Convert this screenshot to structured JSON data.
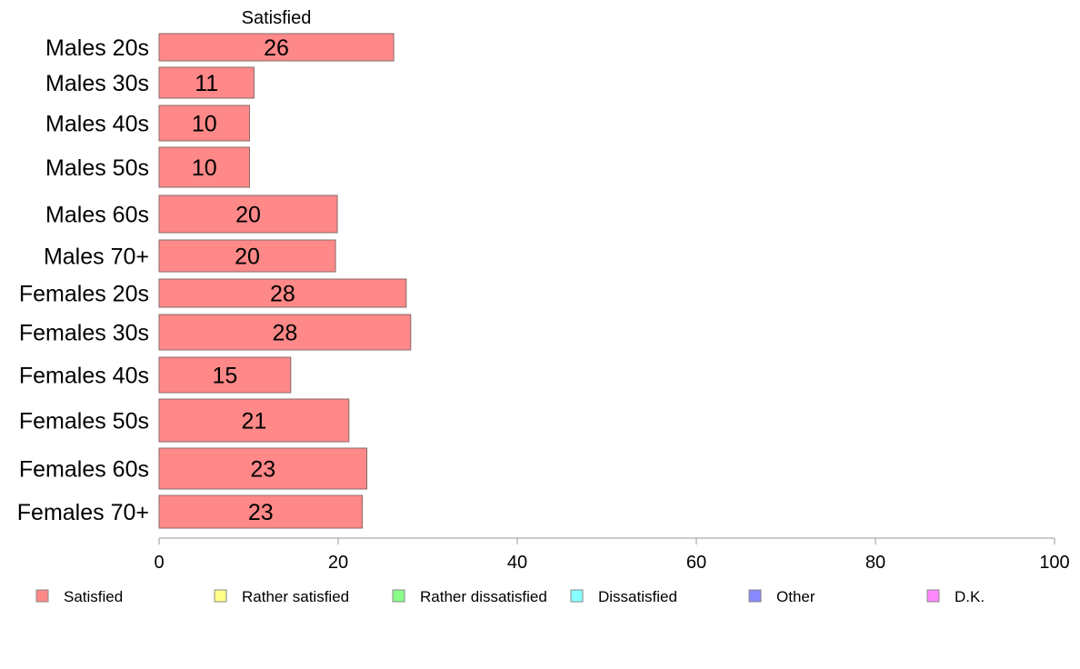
{
  "chart_data": {
    "type": "bar",
    "orientation": "horizontal",
    "series_title": "Satisfied",
    "categories": [
      "Males 20s",
      "Males 30s",
      "Males 40s",
      "Males 50s",
      "Males 60s",
      "Males 70+",
      "Females 20s",
      "Females 30s",
      "Females 40s",
      "Females 50s",
      "Females 60s",
      "Females 70+"
    ],
    "series": [
      {
        "name": "Satisfied",
        "color": "#ff8888",
        "values": [
          26.2,
          10.6,
          10.1,
          10.1,
          19.9,
          19.7,
          27.6,
          28.1,
          14.7,
          21.2,
          23.2,
          22.7
        ]
      }
    ],
    "value_labels": [
      "26",
      "11",
      "10",
      "10",
      "20",
      "20",
      "28",
      "28",
      "15",
      "21",
      "23",
      "23"
    ],
    "xlim": [
      0,
      100
    ],
    "xticks": [
      0,
      20,
      40,
      60,
      80,
      100
    ],
    "xtick_labels": [
      "0",
      "20",
      "40",
      "60",
      "80",
      "100"
    ],
    "grid": false,
    "legend": {
      "placement": "bottom",
      "items": [
        {
          "label": "Satisfied",
          "color": "#ff8888"
        },
        {
          "label": "Rather satisfied",
          "color": "#ffff88"
        },
        {
          "label": "Rather dissatisfied",
          "color": "#88ff88"
        },
        {
          "label": "Dissatisfied",
          "color": "#88ffff"
        },
        {
          "label": "Other",
          "color": "#8888ff"
        },
        {
          "label": "D.K.",
          "color": "#ff88ff"
        }
      ]
    }
  }
}
